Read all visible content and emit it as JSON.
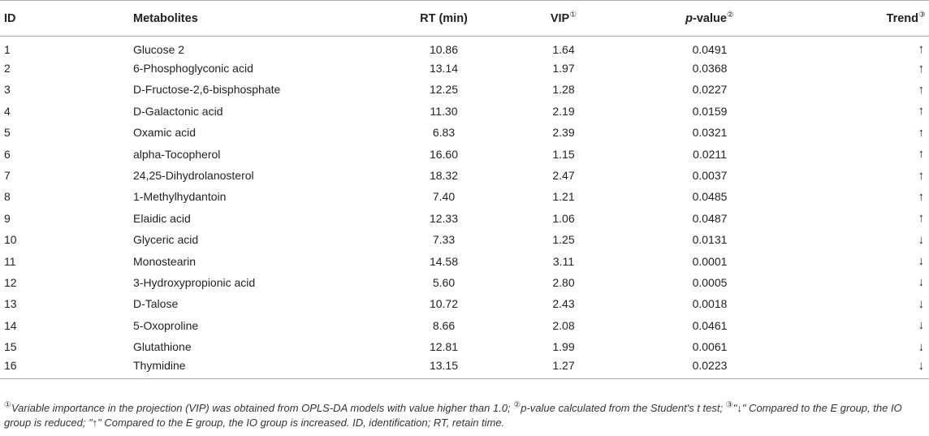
{
  "table": {
    "headers": {
      "id": "ID",
      "metabolites": "Metabolites",
      "rt": "RT (min)",
      "vip": "VIP",
      "vip_mark": "①",
      "pvalue_p": "p",
      "pvalue_rest": "-value",
      "pvalue_mark": "②",
      "trend": "Trend",
      "trend_mark": "③"
    },
    "rows": [
      {
        "id": "1",
        "name": "Glucose 2",
        "rt": "10.86",
        "vip": "1.64",
        "p": "0.0491",
        "trend": "↑"
      },
      {
        "id": "2",
        "name": "6-Phosphoglyconic acid",
        "rt": "13.14",
        "vip": "1.97",
        "p": "0.0368",
        "trend": "↑"
      },
      {
        "id": "3",
        "name": "D-Fructose-2,6-bisphosphate",
        "rt": "12.25",
        "vip": "1.28",
        "p": "0.0227",
        "trend": "↑"
      },
      {
        "id": "4",
        "name": "D-Galactonic acid",
        "rt": "11.30",
        "vip": "2.19",
        "p": "0.0159",
        "trend": "↑"
      },
      {
        "id": "5",
        "name": "Oxamic acid",
        "rt": "6.83",
        "vip": "2.39",
        "p": "0.0321",
        "trend": "↑"
      },
      {
        "id": "6",
        "name": "alpha-Tocopherol",
        "rt": "16.60",
        "vip": "1.15",
        "p": "0.0211",
        "trend": "↑"
      },
      {
        "id": "7",
        "name": "24,25-Dihydrolanosterol",
        "rt": "18.32",
        "vip": "2.47",
        "p": "0.0037",
        "trend": "↑"
      },
      {
        "id": "8",
        "name": "1-Methylhydantoin",
        "rt": "7.40",
        "vip": "1.21",
        "p": "0.0485",
        "trend": "↑"
      },
      {
        "id": "9",
        "name": "Elaidic acid",
        "rt": "12.33",
        "vip": "1.06",
        "p": "0.0487",
        "trend": "↑"
      },
      {
        "id": "10",
        "name": "Glyceric acid",
        "rt": "7.33",
        "vip": "1.25",
        "p": "0.0131",
        "trend": "↓"
      },
      {
        "id": "11",
        "name": "Monostearin",
        "rt": "14.58",
        "vip": "3.11",
        "p": "0.0001",
        "trend": "↓"
      },
      {
        "id": "12",
        "name": "3-Hydroxypropionic acid",
        "rt": "5.60",
        "vip": "2.80",
        "p": "0.0005",
        "trend": "↓"
      },
      {
        "id": "13",
        "name": "D-Talose",
        "rt": "10.72",
        "vip": "2.43",
        "p": "0.0018",
        "trend": "↓"
      },
      {
        "id": "14",
        "name": "5-Oxoproline",
        "rt": "8.66",
        "vip": "2.08",
        "p": "0.0461",
        "trend": "↓"
      },
      {
        "id": "15",
        "name": "Glutathione",
        "rt": "12.81",
        "vip": "1.99",
        "p": "0.0061",
        "trend": "↓"
      },
      {
        "id": "16",
        "name": "Thymidine",
        "rt": "13.15",
        "vip": "1.27",
        "p": "0.0223",
        "trend": "↓"
      }
    ]
  },
  "footnote": {
    "mark1": "①",
    "text1": "Variable importance in the projection (VIP) was obtained from OPLS-DA models with value higher than 1.0; ",
    "mark2": "②",
    "text2": "p-value calculated from the Student's t test; ",
    "mark3": "③",
    "text3": "\"↓\" Compared to the E group, the IO group is reduced; \"↑\" Compared to the E group, the IO group is increased. ID, identification; RT, retain time."
  }
}
